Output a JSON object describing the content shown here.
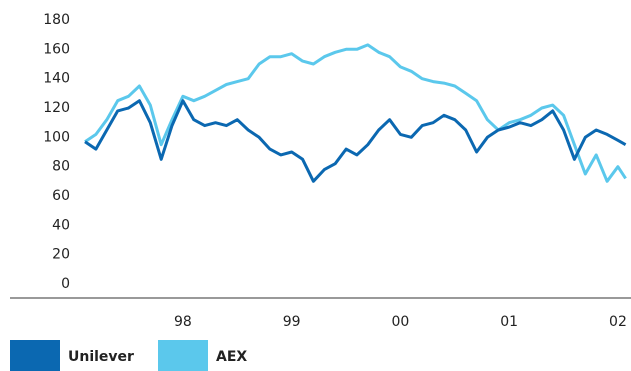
{
  "chart_data": {
    "type": "line",
    "x": [
      1997.1,
      1997.2,
      1997.3,
      1997.4,
      1997.5,
      1997.6,
      1997.7,
      1997.8,
      1997.9,
      1998.0,
      1998.1,
      1998.2,
      1998.3,
      1998.4,
      1998.5,
      1998.6,
      1998.7,
      1998.8,
      1998.9,
      1999.0,
      1999.1,
      1999.2,
      1999.3,
      1999.4,
      1999.5,
      1999.6,
      1999.7,
      1999.8,
      1999.9,
      2000.0,
      2000.1,
      2000.2,
      2000.3,
      2000.4,
      2000.5,
      2000.6,
      2000.7,
      2000.8,
      2000.9,
      2001.0,
      2001.1,
      2001.2,
      2001.3,
      2001.4,
      2001.5,
      2001.6,
      2001.7,
      2001.8,
      2001.9,
      2002.0,
      2002.07
    ],
    "series": [
      {
        "name": "Unilever",
        "color": "#0b68b1",
        "values": [
          97,
          92,
          105,
          118,
          120,
          125,
          110,
          85,
          108,
          125,
          112,
          108,
          110,
          108,
          112,
          105,
          100,
          92,
          88,
          90,
          85,
          70,
          78,
          82,
          92,
          88,
          95,
          105,
          112,
          102,
          100,
          108,
          110,
          115,
          112,
          105,
          90,
          100,
          105,
          107,
          110,
          108,
          112,
          118,
          105,
          85,
          100,
          105,
          102,
          98,
          95
        ]
      },
      {
        "name": "AEX",
        "color": "#5bc8ec",
        "values": [
          97,
          102,
          112,
          125,
          128,
          135,
          122,
          95,
          112,
          128,
          125,
          128,
          132,
          136,
          138,
          140,
          150,
          155,
          155,
          157,
          152,
          150,
          155,
          158,
          160,
          160,
          163,
          158,
          155,
          148,
          145,
          140,
          138,
          137,
          135,
          130,
          125,
          112,
          105,
          110,
          112,
          115,
          120,
          122,
          115,
          95,
          75,
          88,
          70,
          80,
          72
        ]
      }
    ],
    "xlim": [
      1996.41,
      2002.12
    ],
    "xticks": [
      {
        "value": 1998,
        "label": "98"
      },
      {
        "value": 1999,
        "label": "99"
      },
      {
        "value": 2000,
        "label": "00"
      },
      {
        "value": 2001,
        "label": "01"
      },
      {
        "value": 2002,
        "label": "02"
      }
    ],
    "ylim": [
      0,
      180
    ],
    "yticks": [
      0,
      20,
      40,
      60,
      80,
      100,
      120,
      140,
      160,
      180
    ],
    "grid": false
  }
}
